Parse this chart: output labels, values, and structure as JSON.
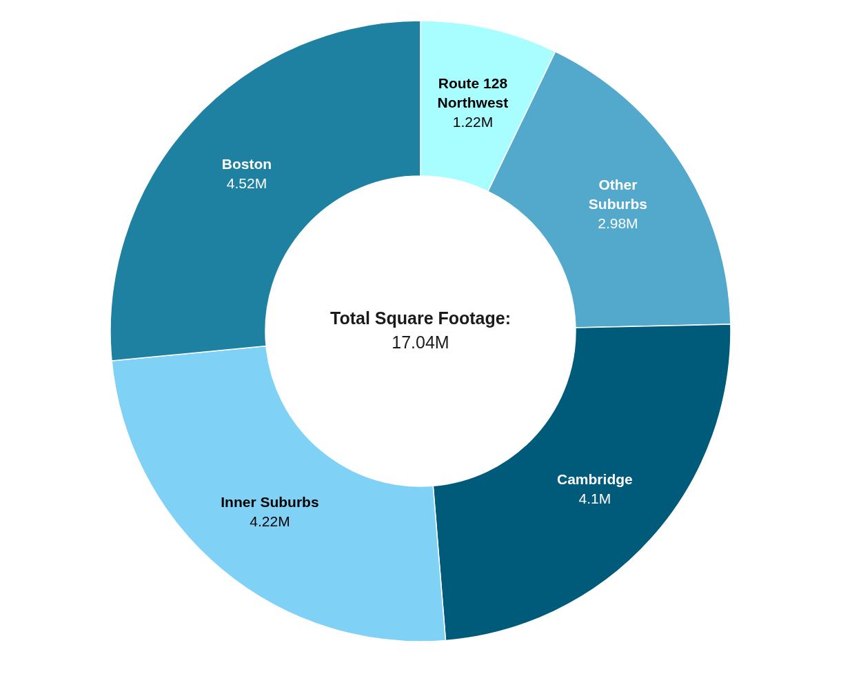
{
  "chart_data": {
    "type": "donut",
    "title": "Total Square Footage:",
    "subtitle": "17.04M",
    "categories": [
      "Route 128 Northwest",
      "Other Suburbs",
      "Cambridge",
      "Inner Suburbs",
      "Boston"
    ],
    "values": [
      1.22,
      2.98,
      4.1,
      4.22,
      4.52
    ],
    "colors": [
      "#a8fdff",
      "#52a9cc",
      "#005b7b",
      "#7fd1f5",
      "#1f81a1"
    ],
    "value_labels": [
      "1.22M",
      "2.98M",
      "4.1M",
      "4.22M",
      "4.52M"
    ]
  }
}
